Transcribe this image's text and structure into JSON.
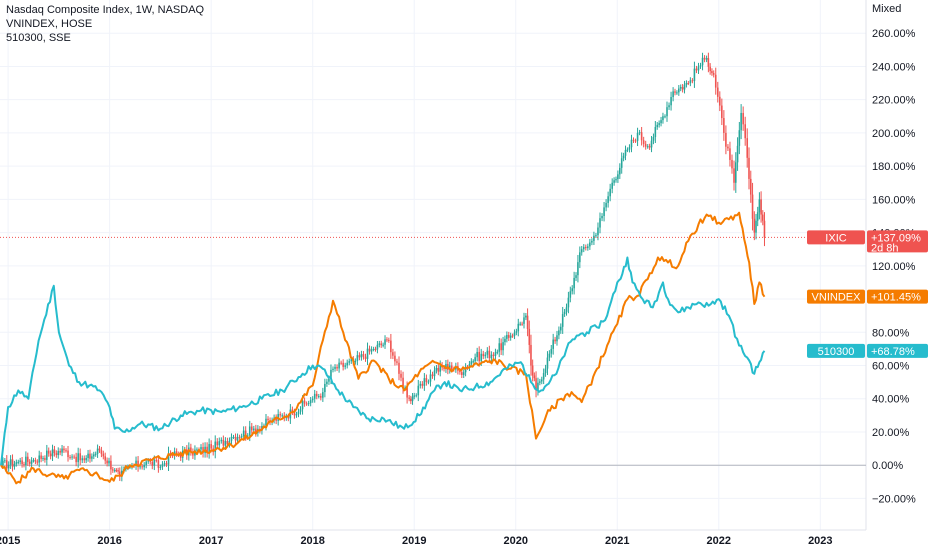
{
  "legend": {
    "main": "Nasdaq Composite Index, 1W, NASDAQ",
    "comp1": "VNINDEX, HOSE",
    "comp2": "510300, SSE"
  },
  "scale_mode": "Mixed",
  "colors": {
    "up": "#26a69a",
    "down": "#ef5350",
    "vnindex": "#f57c00",
    "sse": "#26bccd",
    "zero_line": "#b2b5be",
    "grid": "#f0f3fa"
  },
  "tags": {
    "ixic": {
      "name": "IXIC",
      "value": "+137.09%",
      "countdown": "2d 8h",
      "color": "#ef5350"
    },
    "vnindex": {
      "name": "VNINDEX",
      "value": "+101.45%",
      "color": "#f57c00"
    },
    "sse": {
      "name": "510300",
      "value": "+68.78%",
      "color": "#26bccd"
    }
  },
  "chart_data": {
    "type": "line",
    "y_axis": {
      "ticks": [
        260,
        240,
        220,
        200,
        180,
        160,
        140,
        120,
        100,
        80,
        60,
        40,
        20,
        0,
        -20
      ],
      "tick_labels": [
        "260.00%",
        "240.00%",
        "220.00%",
        "200.00%",
        "180.00%",
        "160.00%",
        "140.00%",
        "120.00%",
        "100.00%",
        "80.00%",
        "60.00%",
        "40.00%",
        "20.00%",
        "0.00%",
        "−20.00%"
      ],
      "ylim": [
        -39,
        280
      ]
    },
    "x_axis": {
      "labels": [
        "2015",
        "2016",
        "2017",
        "2018",
        "2019",
        "2020",
        "2021",
        "2022",
        "2023"
      ],
      "ticks": [
        2015,
        2016,
        2017,
        2018,
        2019,
        2020,
        2021,
        2022,
        2023
      ],
      "xlim": [
        2014.92,
        2023.45
      ]
    },
    "series": [
      {
        "name": "IXIC",
        "style": "candles",
        "points": [
          [
            2014.93,
            0
          ],
          [
            2015.1,
            2
          ],
          [
            2015.25,
            3
          ],
          [
            2015.4,
            7
          ],
          [
            2015.55,
            9
          ],
          [
            2015.65,
            5
          ],
          [
            2015.75,
            3
          ],
          [
            2015.9,
            9
          ],
          [
            2016.05,
            -3
          ],
          [
            2016.1,
            -7
          ],
          [
            2016.2,
            -1
          ],
          [
            2016.4,
            2
          ],
          [
            2016.5,
            -1
          ],
          [
            2016.6,
            6
          ],
          [
            2016.8,
            8
          ],
          [
            2017.0,
            10
          ],
          [
            2017.2,
            17
          ],
          [
            2017.4,
            21
          ],
          [
            2017.6,
            27
          ],
          [
            2017.8,
            32
          ],
          [
            2018.0,
            40
          ],
          [
            2018.1,
            44
          ],
          [
            2018.2,
            58
          ],
          [
            2018.4,
            62
          ],
          [
            2018.6,
            70
          ],
          [
            2018.75,
            75
          ],
          [
            2018.85,
            55
          ],
          [
            2018.95,
            40
          ],
          [
            2019.0,
            42
          ],
          [
            2019.2,
            57
          ],
          [
            2019.35,
            60
          ],
          [
            2019.45,
            56
          ],
          [
            2019.6,
            65
          ],
          [
            2019.8,
            68
          ],
          [
            2019.95,
            78
          ],
          [
            2020.1,
            90
          ],
          [
            2020.15,
            60
          ],
          [
            2020.2,
            45
          ],
          [
            2020.35,
            70
          ],
          [
            2020.5,
            95
          ],
          [
            2020.65,
            130
          ],
          [
            2020.75,
            135
          ],
          [
            2020.85,
            150
          ],
          [
            2020.95,
            170
          ],
          [
            2021.1,
            190
          ],
          [
            2021.2,
            200
          ],
          [
            2021.3,
            192
          ],
          [
            2021.45,
            210
          ],
          [
            2021.55,
            225
          ],
          [
            2021.7,
            230
          ],
          [
            2021.8,
            240
          ],
          [
            2021.88,
            245
          ],
          [
            2021.95,
            235
          ],
          [
            2022.05,
            200
          ],
          [
            2022.15,
            170
          ],
          [
            2022.22,
            212
          ],
          [
            2022.28,
            185
          ],
          [
            2022.35,
            140
          ],
          [
            2022.4,
            160
          ],
          [
            2022.45,
            137.09
          ]
        ]
      },
      {
        "name": "VNINDEX",
        "style": "line",
        "points": [
          [
            2014.93,
            0
          ],
          [
            2015.0,
            -5
          ],
          [
            2015.1,
            -10
          ],
          [
            2015.25,
            -2
          ],
          [
            2015.4,
            -6
          ],
          [
            2015.55,
            -8
          ],
          [
            2015.7,
            -3
          ],
          [
            2015.85,
            -5
          ],
          [
            2016.0,
            -10
          ],
          [
            2016.1,
            -6
          ],
          [
            2016.2,
            0
          ],
          [
            2016.4,
            3
          ],
          [
            2016.6,
            6
          ],
          [
            2016.8,
            8
          ],
          [
            2017.0,
            9
          ],
          [
            2017.2,
            12
          ],
          [
            2017.4,
            18
          ],
          [
            2017.6,
            26
          ],
          [
            2017.8,
            32
          ],
          [
            2018.0,
            48
          ],
          [
            2018.1,
            75
          ],
          [
            2018.2,
            99
          ],
          [
            2018.3,
            80
          ],
          [
            2018.45,
            52
          ],
          [
            2018.6,
            63
          ],
          [
            2018.75,
            52
          ],
          [
            2018.9,
            45
          ],
          [
            2019.05,
            56
          ],
          [
            2019.2,
            62
          ],
          [
            2019.35,
            58
          ],
          [
            2019.5,
            58
          ],
          [
            2019.65,
            61
          ],
          [
            2019.8,
            63
          ],
          [
            2019.95,
            58
          ],
          [
            2020.1,
            55
          ],
          [
            2020.2,
            16
          ],
          [
            2020.3,
            30
          ],
          [
            2020.45,
            40
          ],
          [
            2020.55,
            44
          ],
          [
            2020.65,
            38
          ],
          [
            2020.8,
            58
          ],
          [
            2020.9,
            72
          ],
          [
            2021.0,
            85
          ],
          [
            2021.1,
            100
          ],
          [
            2021.2,
            102
          ],
          [
            2021.3,
            112
          ],
          [
            2021.4,
            125
          ],
          [
            2021.5,
            122
          ],
          [
            2021.6,
            120
          ],
          [
            2021.7,
            135
          ],
          [
            2021.8,
            145
          ],
          [
            2021.9,
            150
          ],
          [
            2022.0,
            146
          ],
          [
            2022.1,
            148
          ],
          [
            2022.2,
            152
          ],
          [
            2022.25,
            136
          ],
          [
            2022.3,
            122
          ],
          [
            2022.35,
            97
          ],
          [
            2022.4,
            110
          ],
          [
            2022.45,
            101.45
          ]
        ]
      },
      {
        "name": "510300",
        "style": "line",
        "points": [
          [
            2014.93,
            0
          ],
          [
            2015.0,
            35
          ],
          [
            2015.1,
            45
          ],
          [
            2015.2,
            40
          ],
          [
            2015.3,
            75
          ],
          [
            2015.45,
            108
          ],
          [
            2015.5,
            80
          ],
          [
            2015.6,
            60
          ],
          [
            2015.7,
            50
          ],
          [
            2015.8,
            48
          ],
          [
            2015.9,
            45
          ],
          [
            2016.0,
            35
          ],
          [
            2016.05,
            22
          ],
          [
            2016.15,
            20
          ],
          [
            2016.3,
            25
          ],
          [
            2016.5,
            22
          ],
          [
            2016.7,
            30
          ],
          [
            2016.9,
            33
          ],
          [
            2017.1,
            32
          ],
          [
            2017.3,
            35
          ],
          [
            2017.5,
            40
          ],
          [
            2017.7,
            45
          ],
          [
            2017.9,
            55
          ],
          [
            2018.0,
            60
          ],
          [
            2018.1,
            58
          ],
          [
            2018.25,
            45
          ],
          [
            2018.4,
            35
          ],
          [
            2018.55,
            28
          ],
          [
            2018.7,
            28
          ],
          [
            2018.9,
            22
          ],
          [
            2019.05,
            30
          ],
          [
            2019.2,
            45
          ],
          [
            2019.3,
            50
          ],
          [
            2019.45,
            45
          ],
          [
            2019.6,
            47
          ],
          [
            2019.75,
            50
          ],
          [
            2019.9,
            58
          ],
          [
            2020.05,
            62
          ],
          [
            2020.15,
            50
          ],
          [
            2020.25,
            45
          ],
          [
            2020.4,
            55
          ],
          [
            2020.5,
            70
          ],
          [
            2020.6,
            78
          ],
          [
            2020.7,
            80
          ],
          [
            2020.8,
            83
          ],
          [
            2020.9,
            90
          ],
          [
            2021.0,
            110
          ],
          [
            2021.05,
            115
          ],
          [
            2021.1,
            125
          ],
          [
            2021.15,
            110
          ],
          [
            2021.25,
            100
          ],
          [
            2021.35,
            95
          ],
          [
            2021.45,
            110
          ],
          [
            2021.5,
            100
          ],
          [
            2021.6,
            92
          ],
          [
            2021.7,
            95
          ],
          [
            2021.8,
            98
          ],
          [
            2021.9,
            96
          ],
          [
            2022.0,
            100
          ],
          [
            2022.1,
            90
          ],
          [
            2022.2,
            72
          ],
          [
            2022.3,
            63
          ],
          [
            2022.35,
            55
          ],
          [
            2022.4,
            62
          ],
          [
            2022.45,
            68.78
          ]
        ]
      }
    ]
  }
}
